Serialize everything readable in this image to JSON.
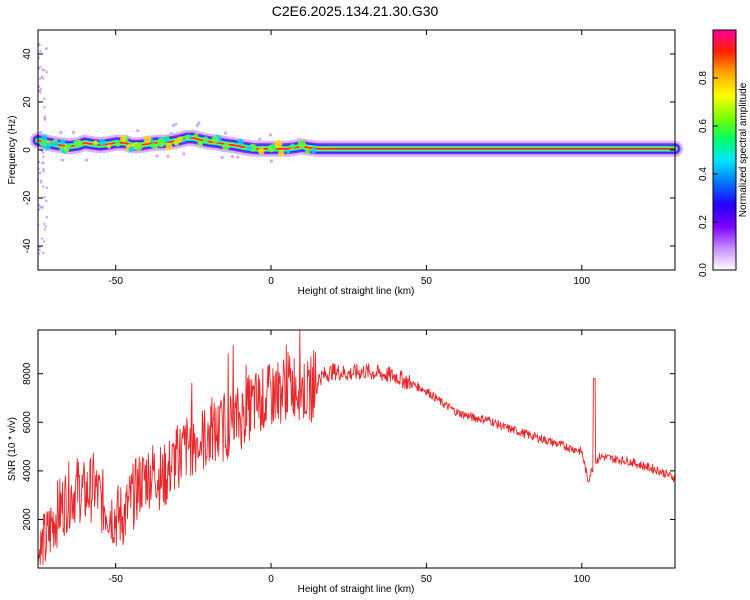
{
  "figure": {
    "title": "C2E6.2025.134.21.30.G30"
  },
  "chart_data": [
    {
      "type": "heatmap",
      "xlabel": "Height of straight line (km)",
      "ylabel": "Frequency (Hz)",
      "xlim": [
        -75,
        130
      ],
      "ylim": [
        -50,
        50
      ],
      "xticks": [
        -50,
        0,
        50,
        100
      ],
      "yticks": [
        -40,
        -20,
        0,
        20,
        40
      ],
      "grid": false,
      "colorbar": {
        "label": "Normalized spectral amplitude",
        "range": [
          0,
          1
        ],
        "ticks": [
          0.0,
          0.2,
          0.4,
          0.6,
          0.8
        ],
        "tick_labels": [
          "0.0",
          "0.2",
          "0.4",
          "0.6",
          "0.8"
        ],
        "colors": [
          "#ffffff",
          "#c88cff",
          "#7a00ff",
          "#2200ff",
          "#0077ff",
          "#00e5ff",
          "#00ff66",
          "#7cff00",
          "#ffff00",
          "#ffaa00",
          "#ff2200",
          "#ff0099"
        ]
      },
      "ridge": {
        "x": [
          -75,
          -72,
          -70,
          -68,
          -65,
          -62,
          -60,
          -58,
          -55,
          -52,
          -50,
          -47,
          -45,
          -42,
          -40,
          -37,
          -35,
          -32,
          -30,
          -27,
          -25,
          -22,
          -20,
          -17,
          -15,
          -12,
          -10,
          -8,
          -5,
          0,
          5,
          8,
          10,
          12,
          15,
          20,
          30,
          50,
          75,
          100,
          102,
          105,
          130
        ],
        "y": [
          4,
          3,
          2.5,
          2,
          1.5,
          2,
          3,
          2.5,
          2,
          2.5,
          3,
          3,
          2,
          2,
          2.5,
          3,
          3,
          3.5,
          4,
          5,
          5,
          4,
          3.5,
          3,
          2.5,
          2,
          1.5,
          1,
          0.5,
          0.5,
          0.5,
          1,
          1.5,
          1,
          0.5,
          0.5,
          0.5,
          0.5,
          0.5,
          0.5,
          0.5,
          0.5,
          0.5
        ]
      }
    },
    {
      "type": "line",
      "xlabel": "Height of straight line (km)",
      "ylabel": "SNR (10 * v/v)",
      "xlim": [
        -75,
        130
      ],
      "ylim": [
        0,
        9800
      ],
      "xticks": [
        -50,
        0,
        50,
        100
      ],
      "yticks": [
        2000,
        4000,
        6000,
        8000
      ],
      "grid": false,
      "series": [
        {
          "color": "#e8272b",
          "x": [
            -75,
            -72,
            -70,
            -67,
            -65,
            -62,
            -60,
            -57,
            -55,
            -52,
            -50,
            -47,
            -45,
            -42,
            -40,
            -37,
            -35,
            -32,
            -30,
            -27,
            -25,
            -22,
            -20,
            -17,
            -15,
            -12,
            -10,
            -7,
            -5,
            -2,
            0,
            3,
            5,
            8,
            10,
            12,
            15,
            18,
            20,
            25,
            30,
            35,
            40,
            45,
            50,
            55,
            60,
            65,
            70,
            75,
            80,
            85,
            90,
            95,
            100,
            102,
            104,
            106,
            110,
            115,
            120,
            125,
            130
          ],
          "y": [
            500,
            1200,
            2000,
            2600,
            3000,
            3300,
            3000,
            3400,
            2800,
            2400,
            2100,
            2200,
            2800,
            3500,
            3800,
            4000,
            3600,
            4200,
            4600,
            5000,
            5200,
            5300,
            5400,
            5600,
            5800,
            6000,
            6200,
            6600,
            6800,
            6900,
            7100,
            7300,
            7500,
            7600,
            7400,
            7200,
            7800,
            8000,
            8100,
            8000,
            8100,
            8000,
            7900,
            7600,
            7300,
            6800,
            6400,
            6200,
            6100,
            5800,
            5600,
            5400,
            5200,
            5000,
            4800,
            3600,
            4300,
            4600,
            4500,
            4400,
            4200,
            4000,
            3700
          ]
        }
      ]
    }
  ]
}
